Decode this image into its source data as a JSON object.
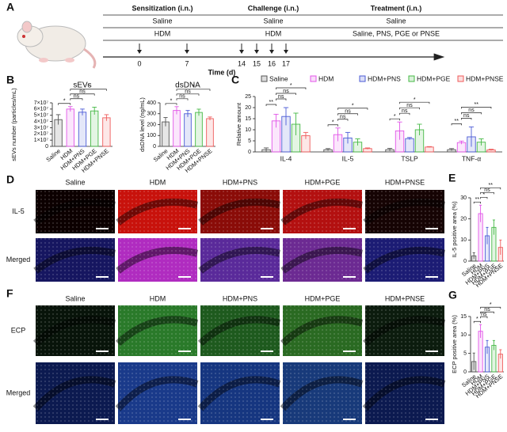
{
  "panel_labels": [
    "A",
    "B",
    "C",
    "D",
    "E",
    "F",
    "G"
  ],
  "panel_a": {
    "headers": [
      "Sensitization (i.n.)",
      "Challenge (i.n.)",
      "Treatment (i.n.)"
    ],
    "rows": [
      [
        "Saline",
        "Saline",
        "Saline"
      ],
      [
        "HDM",
        "HDM",
        "Saline, PNS, PGE or PNSE"
      ]
    ],
    "days": [
      0,
      7,
      14,
      15,
      16,
      17
    ],
    "time_label": "Time (d)"
  },
  "panel_d": {
    "columns": [
      "Saline",
      "HDM",
      "HDM+PNS",
      "HDM+PGE",
      "HDM+PNSE"
    ],
    "rows": [
      "IL-5",
      "Merged"
    ]
  },
  "panel_f": {
    "columns": [
      "Saline",
      "HDM",
      "HDM+PNS",
      "HDM+PGE",
      "HDM+PNSE"
    ],
    "rows": [
      "ECP",
      "Merged"
    ]
  },
  "chart_data": [
    {
      "type": "bar",
      "title": "sEVs",
      "y_label": "sEVs number (particles/mL)",
      "categories": [
        "Saline",
        "HDM",
        "HDM+PNS",
        "HDM+PGE",
        "HDM+PNSE"
      ],
      "values": [
        43000000,
        60000000,
        55000000,
        57000000,
        46000000
      ],
      "errors": [
        8000000,
        4000000,
        5000000,
        6000000,
        5000000
      ],
      "colors": [
        "#555555",
        "#e255e8",
        "#4b5bd6",
        "#46b946",
        "#ef5b5b"
      ],
      "significance": [
        "*",
        "ns",
        "ns",
        "*"
      ],
      "ylim": [
        0,
        70000000
      ],
      "yticks": [
        0,
        {
          "value": 10000000,
          "label": "1×10⁷"
        },
        {
          "value": 20000000,
          "label": "2×10⁷"
        },
        {
          "value": 30000000,
          "label": "3×10⁷"
        },
        {
          "value": 40000000,
          "label": "4×10⁷"
        },
        {
          "value": 50000000,
          "label": "5×10⁷"
        },
        {
          "value": 60000000,
          "label": "6×10⁷"
        },
        {
          "value": 70000000,
          "label": "7×10⁷"
        }
      ]
    },
    {
      "type": "bar",
      "title": "dsDNA",
      "y_label": "dsDNA level (ng/mL)",
      "categories": [
        "Saline",
        "HDM",
        "HDM+PNS",
        "HDM+PGE",
        "HDM+PNSE"
      ],
      "values": [
        225,
        330,
        300,
        312,
        255
      ],
      "errors": [
        40,
        35,
        30,
        30,
        15
      ],
      "colors": [
        "#555555",
        "#e255e8",
        "#4b5bd6",
        "#46b946",
        "#ef5b5b"
      ],
      "significance": [
        "*",
        "ns",
        "ns",
        "*"
      ],
      "ylim": [
        0,
        400
      ],
      "yticks": [
        0,
        100,
        200,
        300,
        400
      ]
    },
    {
      "type": "bar",
      "y_label": "Relative amount",
      "categories": [
        "IL-4",
        "IL-5",
        "TSLP",
        "TNF-α"
      ],
      "series": [
        {
          "name": "Saline",
          "color": "#555555",
          "values": [
            1,
            1,
            1,
            1
          ],
          "errors": [
            0.8,
            0.5,
            0.6,
            0.5
          ]
        },
        {
          "name": "HDM",
          "color": "#e255e8",
          "values": [
            14,
            7.8,
            9.5,
            4.2
          ],
          "errors": [
            3,
            3,
            4,
            0.7
          ]
        },
        {
          "name": "HDM+PNS",
          "color": "#4b5bd6",
          "values": [
            16,
            6.3,
            6,
            6.8
          ],
          "errors": [
            4,
            2.5,
            0.5,
            4.5
          ]
        },
        {
          "name": "HDM+PGE",
          "color": "#46b946",
          "values": [
            12.5,
            4.4,
            10,
            4.4
          ],
          "errors": [
            5,
            1.5,
            2.5,
            1.5
          ]
        },
        {
          "name": "HDM+PNSE",
          "color": "#ef5b5b",
          "values": [
            7.3,
            1.5,
            2.2,
            0.9
          ],
          "errors": [
            1.5,
            0.3,
            0.2,
            0.3
          ]
        }
      ],
      "significance": [
        [
          "**",
          "ns",
          "ns",
          "*"
        ],
        [
          "*",
          "ns",
          "ns",
          "*"
        ],
        [
          "*",
          "ns",
          "ns",
          "*"
        ],
        [
          "**",
          "ns",
          "ns",
          "**"
        ]
      ],
      "ylim": [
        0,
        25
      ],
      "yticks": [
        0,
        5,
        10,
        15,
        20,
        25
      ]
    },
    {
      "type": "bar",
      "y_label": "IL-5 positive area (%)",
      "categories": [
        "Saline",
        "HDM",
        "HDM+PNS",
        "HDM+PGE",
        "HDM+PNSE"
      ],
      "values": [
        2.5,
        22.5,
        12,
        16,
        6.5
      ],
      "errors": [
        1.5,
        4,
        4,
        3.5,
        3.5
      ],
      "colors": [
        "#555555",
        "#e255e8",
        "#4b5bd6",
        "#46b946",
        "#ef5b5b"
      ],
      "significance": [
        "**",
        "*",
        "ns",
        "**"
      ],
      "ylim": [
        0,
        30
      ],
      "yticks": [
        0,
        10,
        20,
        30
      ]
    },
    {
      "type": "bar",
      "y_label": "ECP positive area (%)",
      "categories": [
        "Saline",
        "HDM",
        "HDM+PNS",
        "HDM+PGE",
        "HDM+PNSE"
      ],
      "values": [
        2.8,
        11,
        6.7,
        7.2,
        4.8
      ],
      "errors": [
        2.3,
        1.8,
        1.8,
        1.3,
        1.2
      ],
      "colors": [
        "#555555",
        "#e255e8",
        "#4b5bd6",
        "#46b946",
        "#ef5b5b"
      ],
      "significance": [
        "*",
        "ns",
        "ns",
        "*"
      ],
      "ylim": [
        0,
        15
      ],
      "yticks": [
        0,
        5,
        10,
        15
      ]
    }
  ]
}
